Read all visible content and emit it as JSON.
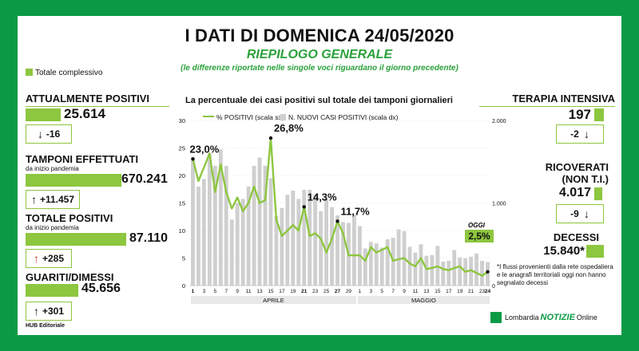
{
  "header": {
    "title": "I DATI DI DOMENICA 24/05/2020",
    "subtitle": "RIEPILOGO GENERALE",
    "note": "(le differenze riportate nelle singole voci riguardano il giorno precedente)",
    "legend_total": "Totale complessivo"
  },
  "left": {
    "attualmente_positivi": {
      "label": "ATTUALMENTE POSITIVI",
      "value": "25.614",
      "delta": "-16",
      "delta_arrow": "↓"
    },
    "tamponi": {
      "label": "TAMPONI EFFETTUATI",
      "sub": "da inizio pandemia",
      "value": "670.241",
      "delta": "+11.457",
      "delta_arrow": "↑"
    },
    "totale_positivi": {
      "label": "TOTALE POSITIVI",
      "sub": "da inizio pandemia",
      "value": "87.110",
      "delta": "+285",
      "delta_arrow": "↑"
    },
    "guariti": {
      "label": "GUARITI/DIMESSI",
      "value": "45.656",
      "delta": "+301",
      "delta_arrow": "↑"
    }
  },
  "right": {
    "terapia": {
      "label": "TERAPIA INTENSIVA",
      "value": "197",
      "delta": "-2",
      "delta_arrow": "↓"
    },
    "ricoverati": {
      "label1": "RICOVERATI",
      "label2": "(NON T.I.)",
      "value": "4.017",
      "delta": "-9",
      "delta_arrow": "↓"
    },
    "decessi": {
      "label": "DECESSI",
      "value": "15.840*",
      "footnote": "*I flussi provenienti dalla rete ospedaliera e le anagrafi territoriali oggi non hanno segnalato decessi"
    }
  },
  "chart_header": {
    "title": "La percentuale dei casi positivi sul totale dei tamponi giornalieri",
    "legend_line": "% POSITIVI (scala sx)",
    "legend_bar": "N. NUOVI CASI POSITIVI (scala dx)",
    "oggi": "OGGI",
    "oggi_value": "2,5%"
  },
  "footer": {
    "credit": "HUB Editoriale",
    "logo_left": "Lombardia",
    "logo_mid": "NOTIZIE",
    "logo_right": "Online"
  },
  "colors": {
    "green_dark": "#0a9a46",
    "green_light": "#8dc63f",
    "bar_gray": "#cfcfcf"
  },
  "chart_data": {
    "type": "bar",
    "x": [
      "1",
      "2",
      "3",
      "4",
      "5",
      "6",
      "7",
      "8",
      "9",
      "10",
      "11",
      "12",
      "13",
      "14",
      "15",
      "16",
      "17",
      "18",
      "19",
      "20",
      "21",
      "22",
      "23",
      "24",
      "25",
      "26",
      "27",
      "28",
      "29",
      "30",
      "1",
      "2",
      "3",
      "4",
      "5",
      "6",
      "7",
      "8",
      "9",
      "10",
      "11",
      "12",
      "13",
      "14",
      "15",
      "16",
      "17",
      "18",
      "19",
      "20",
      "21",
      "22",
      "23",
      "24"
    ],
    "x_tick_labels": [
      "1",
      "3",
      "5",
      "7",
      "9",
      "11",
      "13",
      "15",
      "17",
      "19",
      "21",
      "23",
      "25",
      "27",
      "29",
      "1",
      "3",
      "5",
      "7",
      "9",
      "11",
      "13",
      "15",
      "17",
      "19",
      "21",
      "23"
    ],
    "x_bold_ticks": [
      "1",
      "14",
      "21",
      "27",
      "24"
    ],
    "x_groups": [
      {
        "label": "APRILE",
        "from": 0,
        "to": 29
      },
      {
        "label": "MAGGIO",
        "from": 30,
        "to": 53
      }
    ],
    "ylim_left": [
      0,
      30
    ],
    "yticks_left": [
      0,
      5,
      10,
      15,
      20,
      25,
      30
    ],
    "ylim_right": [
      0,
      2000
    ],
    "yticks_right_labeled": [
      "0",
      "1.000",
      "2.000"
    ],
    "series": [
      {
        "name": "% POSITIVI (scala sx)",
        "type": "line",
        "axis": "left",
        "values": [
          23.0,
          19,
          21.5,
          24,
          17,
          22,
          17,
          14,
          16,
          13.5,
          15,
          18,
          15,
          15.5,
          26.8,
          12,
          9,
          10,
          11,
          10,
          14.3,
          9,
          9.5,
          8.5,
          6,
          8.5,
          11.7,
          9.5,
          5.5,
          5.5,
          5.5,
          4.5,
          7,
          6,
          6.5,
          7,
          4.5,
          4.8,
          5,
          4,
          3.5,
          5,
          3,
          3.2,
          3.5,
          3,
          2.8,
          3.2,
          3.5,
          2.5,
          2.8,
          2.3,
          1.8,
          2.5
        ]
      },
      {
        "name": "N. NUOVI CASI POSITIVI (scala dx)",
        "type": "bar",
        "axis": "right",
        "values": [
          1560,
          1200,
          1290,
          1600,
          1450,
          1650,
          1450,
          800,
          1000,
          1050,
          1200,
          1450,
          1550,
          1450,
          1300,
          840,
          940,
          1100,
          1150,
          1050,
          1160,
          1160,
          1100,
          900,
          1050,
          950,
          850,
          770,
          760,
          860,
          720,
          450,
          530,
          510,
          460,
          560,
          580,
          680,
          660,
          470,
          400,
          500,
          360,
          370,
          480,
          290,
          300,
          430,
          340,
          330,
          350,
          390,
          300,
          285
        ]
      }
    ],
    "annotations": [
      {
        "text": "23,0%",
        "index": 0
      },
      {
        "text": "26,8%",
        "index": 14
      },
      {
        "text": "14,3%",
        "index": 20
      },
      {
        "text": "11,7%",
        "index": 26
      }
    ]
  }
}
